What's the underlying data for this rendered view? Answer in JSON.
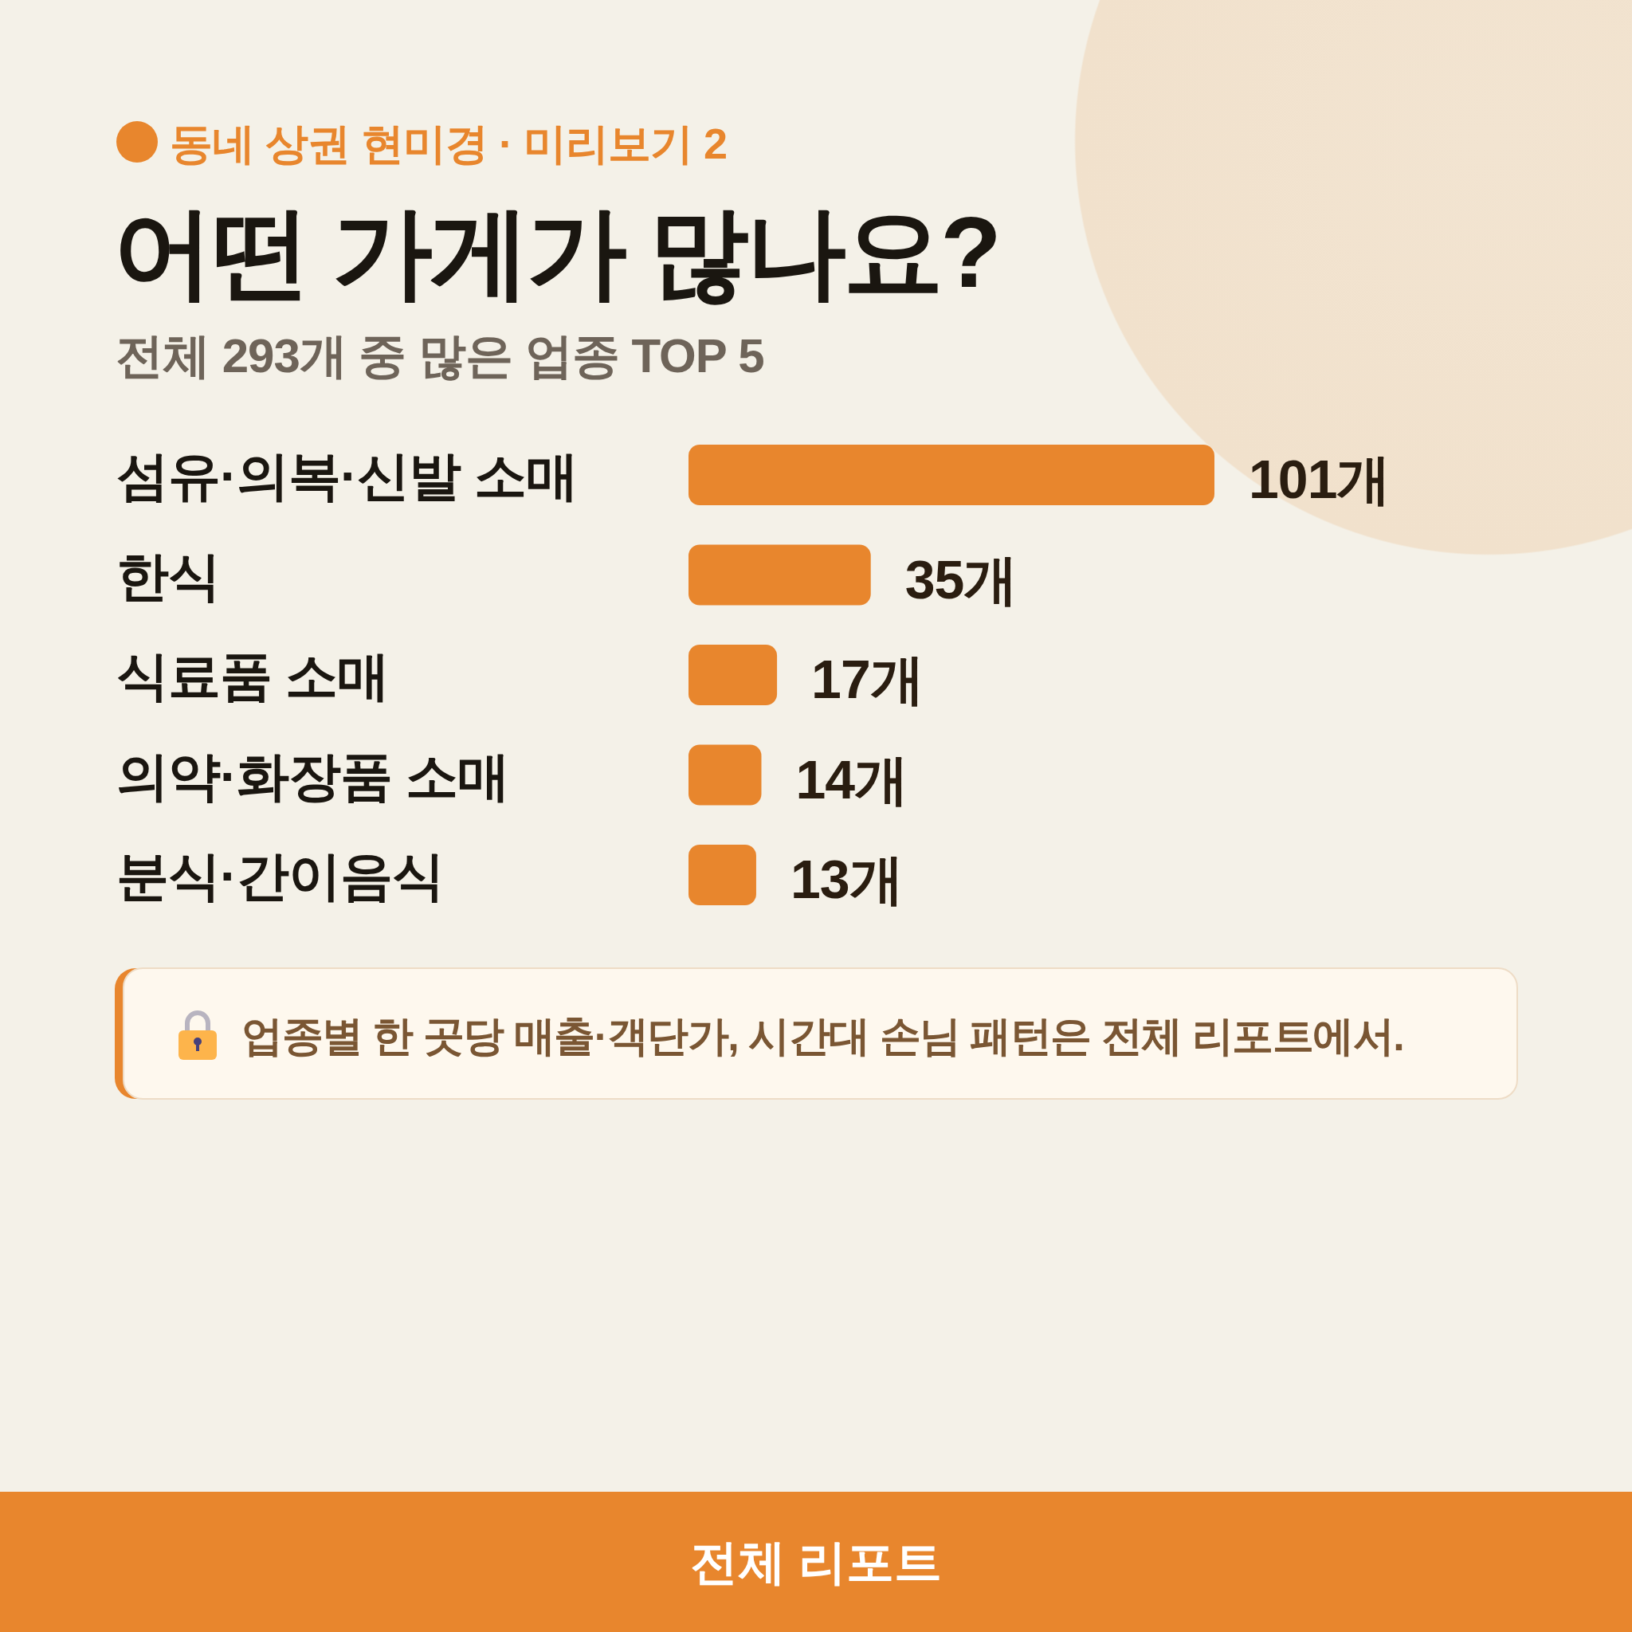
{
  "chart_data": {
    "type": "bar",
    "orientation": "horizontal",
    "title": "어떤 가게가 많나요?",
    "subtitle": "전체 293개 중 많은 업종 TOP 5",
    "categories": [
      "섬유·의복·신발 소매",
      "한식",
      "식료품 소매",
      "의약·화장품 소매",
      "분식·간이음식"
    ],
    "values": [
      101,
      35,
      17,
      14,
      13
    ],
    "color": "#e8862d",
    "value_labels": [
      "101개",
      "35개",
      "17개",
      "14개",
      "13개"
    ],
    "annotations": [
      "동네 상권 현미경 · 미리보기 2",
      "업종별 한 곳당 매출·객단가, 시간대 손님 패턴은 전체 리포트에서.",
      "전체 리포트"
    ]
  }
}
